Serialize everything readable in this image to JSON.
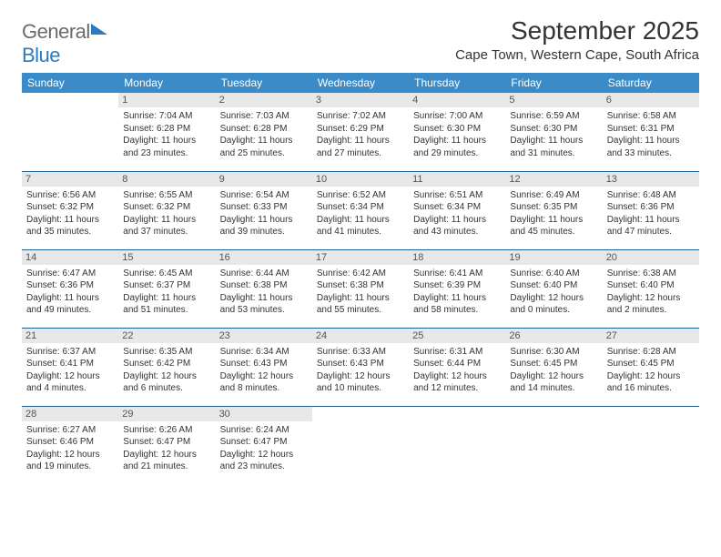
{
  "brand": {
    "part1": "General",
    "part2": "Blue"
  },
  "title": "September 2025",
  "location": "Cape Town, Western Cape, South Africa",
  "colors": {
    "header_bg": "#3b8bc8",
    "header_text": "#ffffff",
    "daynum_bg": "#e8e8e8",
    "border": "#1d5f8f",
    "text": "#333333",
    "logo_gray": "#6b6b6b",
    "logo_blue": "#2a7bbf"
  },
  "daynames": [
    "Sunday",
    "Monday",
    "Tuesday",
    "Wednesday",
    "Thursday",
    "Friday",
    "Saturday"
  ],
  "weeks": [
    [
      {
        "n": "",
        "sr": "",
        "ss": "",
        "d1": "",
        "d2": ""
      },
      {
        "n": "1",
        "sr": "Sunrise: 7:04 AM",
        "ss": "Sunset: 6:28 PM",
        "d1": "Daylight: 11 hours",
        "d2": "and 23 minutes."
      },
      {
        "n": "2",
        "sr": "Sunrise: 7:03 AM",
        "ss": "Sunset: 6:28 PM",
        "d1": "Daylight: 11 hours",
        "d2": "and 25 minutes."
      },
      {
        "n": "3",
        "sr": "Sunrise: 7:02 AM",
        "ss": "Sunset: 6:29 PM",
        "d1": "Daylight: 11 hours",
        "d2": "and 27 minutes."
      },
      {
        "n": "4",
        "sr": "Sunrise: 7:00 AM",
        "ss": "Sunset: 6:30 PM",
        "d1": "Daylight: 11 hours",
        "d2": "and 29 minutes."
      },
      {
        "n": "5",
        "sr": "Sunrise: 6:59 AM",
        "ss": "Sunset: 6:30 PM",
        "d1": "Daylight: 11 hours",
        "d2": "and 31 minutes."
      },
      {
        "n": "6",
        "sr": "Sunrise: 6:58 AM",
        "ss": "Sunset: 6:31 PM",
        "d1": "Daylight: 11 hours",
        "d2": "and 33 minutes."
      }
    ],
    [
      {
        "n": "7",
        "sr": "Sunrise: 6:56 AM",
        "ss": "Sunset: 6:32 PM",
        "d1": "Daylight: 11 hours",
        "d2": "and 35 minutes."
      },
      {
        "n": "8",
        "sr": "Sunrise: 6:55 AM",
        "ss": "Sunset: 6:32 PM",
        "d1": "Daylight: 11 hours",
        "d2": "and 37 minutes."
      },
      {
        "n": "9",
        "sr": "Sunrise: 6:54 AM",
        "ss": "Sunset: 6:33 PM",
        "d1": "Daylight: 11 hours",
        "d2": "and 39 minutes."
      },
      {
        "n": "10",
        "sr": "Sunrise: 6:52 AM",
        "ss": "Sunset: 6:34 PM",
        "d1": "Daylight: 11 hours",
        "d2": "and 41 minutes."
      },
      {
        "n": "11",
        "sr": "Sunrise: 6:51 AM",
        "ss": "Sunset: 6:34 PM",
        "d1": "Daylight: 11 hours",
        "d2": "and 43 minutes."
      },
      {
        "n": "12",
        "sr": "Sunrise: 6:49 AM",
        "ss": "Sunset: 6:35 PM",
        "d1": "Daylight: 11 hours",
        "d2": "and 45 minutes."
      },
      {
        "n": "13",
        "sr": "Sunrise: 6:48 AM",
        "ss": "Sunset: 6:36 PM",
        "d1": "Daylight: 11 hours",
        "d2": "and 47 minutes."
      }
    ],
    [
      {
        "n": "14",
        "sr": "Sunrise: 6:47 AM",
        "ss": "Sunset: 6:36 PM",
        "d1": "Daylight: 11 hours",
        "d2": "and 49 minutes."
      },
      {
        "n": "15",
        "sr": "Sunrise: 6:45 AM",
        "ss": "Sunset: 6:37 PM",
        "d1": "Daylight: 11 hours",
        "d2": "and 51 minutes."
      },
      {
        "n": "16",
        "sr": "Sunrise: 6:44 AM",
        "ss": "Sunset: 6:38 PM",
        "d1": "Daylight: 11 hours",
        "d2": "and 53 minutes."
      },
      {
        "n": "17",
        "sr": "Sunrise: 6:42 AM",
        "ss": "Sunset: 6:38 PM",
        "d1": "Daylight: 11 hours",
        "d2": "and 55 minutes."
      },
      {
        "n": "18",
        "sr": "Sunrise: 6:41 AM",
        "ss": "Sunset: 6:39 PM",
        "d1": "Daylight: 11 hours",
        "d2": "and 58 minutes."
      },
      {
        "n": "19",
        "sr": "Sunrise: 6:40 AM",
        "ss": "Sunset: 6:40 PM",
        "d1": "Daylight: 12 hours",
        "d2": "and 0 minutes."
      },
      {
        "n": "20",
        "sr": "Sunrise: 6:38 AM",
        "ss": "Sunset: 6:40 PM",
        "d1": "Daylight: 12 hours",
        "d2": "and 2 minutes."
      }
    ],
    [
      {
        "n": "21",
        "sr": "Sunrise: 6:37 AM",
        "ss": "Sunset: 6:41 PM",
        "d1": "Daylight: 12 hours",
        "d2": "and 4 minutes."
      },
      {
        "n": "22",
        "sr": "Sunrise: 6:35 AM",
        "ss": "Sunset: 6:42 PM",
        "d1": "Daylight: 12 hours",
        "d2": "and 6 minutes."
      },
      {
        "n": "23",
        "sr": "Sunrise: 6:34 AM",
        "ss": "Sunset: 6:43 PM",
        "d1": "Daylight: 12 hours",
        "d2": "and 8 minutes."
      },
      {
        "n": "24",
        "sr": "Sunrise: 6:33 AM",
        "ss": "Sunset: 6:43 PM",
        "d1": "Daylight: 12 hours",
        "d2": "and 10 minutes."
      },
      {
        "n": "25",
        "sr": "Sunrise: 6:31 AM",
        "ss": "Sunset: 6:44 PM",
        "d1": "Daylight: 12 hours",
        "d2": "and 12 minutes."
      },
      {
        "n": "26",
        "sr": "Sunrise: 6:30 AM",
        "ss": "Sunset: 6:45 PM",
        "d1": "Daylight: 12 hours",
        "d2": "and 14 minutes."
      },
      {
        "n": "27",
        "sr": "Sunrise: 6:28 AM",
        "ss": "Sunset: 6:45 PM",
        "d1": "Daylight: 12 hours",
        "d2": "and 16 minutes."
      }
    ],
    [
      {
        "n": "28",
        "sr": "Sunrise: 6:27 AM",
        "ss": "Sunset: 6:46 PM",
        "d1": "Daylight: 12 hours",
        "d2": "and 19 minutes."
      },
      {
        "n": "29",
        "sr": "Sunrise: 6:26 AM",
        "ss": "Sunset: 6:47 PM",
        "d1": "Daylight: 12 hours",
        "d2": "and 21 minutes."
      },
      {
        "n": "30",
        "sr": "Sunrise: 6:24 AM",
        "ss": "Sunset: 6:47 PM",
        "d1": "Daylight: 12 hours",
        "d2": "and 23 minutes."
      },
      {
        "n": "",
        "sr": "",
        "ss": "",
        "d1": "",
        "d2": ""
      },
      {
        "n": "",
        "sr": "",
        "ss": "",
        "d1": "",
        "d2": ""
      },
      {
        "n": "",
        "sr": "",
        "ss": "",
        "d1": "",
        "d2": ""
      },
      {
        "n": "",
        "sr": "",
        "ss": "",
        "d1": "",
        "d2": ""
      }
    ]
  ]
}
